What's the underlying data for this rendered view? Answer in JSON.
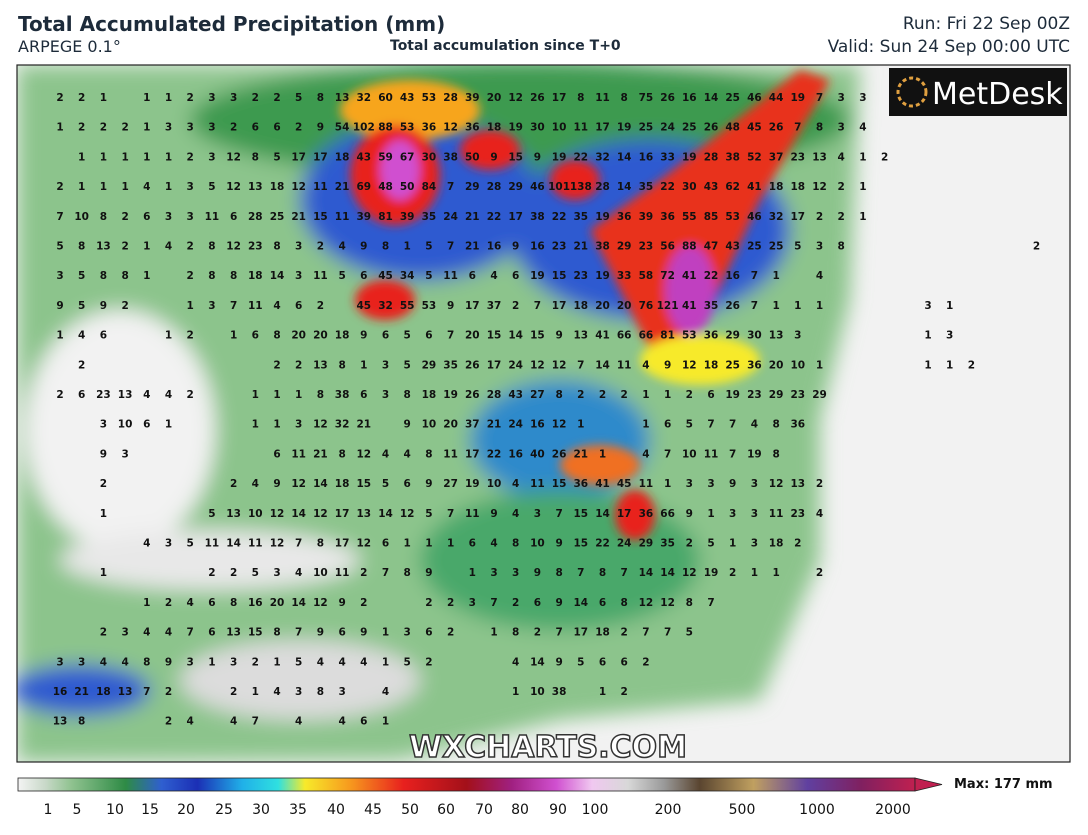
{
  "header": {
    "title": "Total Accumulated Precipitation (mm)",
    "model": "ARPEGE 0.1°",
    "subtitle": "Total accumulation since T+0",
    "run": "Run: Fri 22 Sep 00Z",
    "valid": "Valid: Sun 24 Sep 00:00 UTC"
  },
  "logo": "MetDesk",
  "watermark": "WXCHARTS.COM",
  "colorbar": {
    "ticks": [
      1,
      5,
      10,
      15,
      20,
      25,
      30,
      35,
      40,
      45,
      50,
      60,
      70,
      80,
      90,
      100,
      200,
      500,
      1000,
      2000
    ],
    "max": "Max: 177 mm"
  },
  "grid": {
    "rows": [
      [
        2,
        2,
        1,
        null,
        1,
        1,
        2,
        3,
        3,
        2,
        2,
        5,
        8,
        13,
        32,
        60,
        43,
        53,
        28,
        39,
        20,
        12,
        26,
        17,
        8,
        11,
        8,
        75,
        26,
        16,
        14,
        25,
        46,
        44,
        19,
        7,
        3,
        3
      ],
      [
        1,
        2,
        2,
        2,
        1,
        3,
        3,
        3,
        2,
        6,
        6,
        2,
        9,
        54,
        102,
        88,
        53,
        36,
        12,
        36,
        18,
        19,
        30,
        10,
        11,
        17,
        19,
        25,
        24,
        25,
        26,
        48,
        45,
        26,
        7,
        8,
        3,
        4
      ],
      [
        null,
        1,
        1,
        1,
        1,
        1,
        2,
        3,
        12,
        8,
        5,
        17,
        17,
        18,
        43,
        59,
        67,
        30,
        38,
        50,
        9,
        15,
        9,
        19,
        22,
        32,
        14,
        16,
        33,
        19,
        28,
        38,
        52,
        37,
        23,
        13,
        4,
        1,
        2
      ],
      [
        2,
        1,
        1,
        1,
        4,
        1,
        3,
        5,
        12,
        13,
        18,
        12,
        11,
        21,
        69,
        48,
        50,
        84,
        7,
        29,
        28,
        29,
        46,
        101,
        138,
        28,
        14,
        35,
        22,
        30,
        43,
        62,
        41,
        18,
        18,
        12,
        2,
        1
      ],
      [
        7,
        10,
        8,
        2,
        6,
        3,
        3,
        11,
        6,
        28,
        25,
        21,
        15,
        11,
        39,
        81,
        39,
        35,
        24,
        21,
        22,
        17,
        38,
        22,
        35,
        19,
        36,
        39,
        36,
        55,
        85,
        53,
        46,
        32,
        17,
        2,
        2,
        1
      ],
      [
        5,
        8,
        13,
        2,
        1,
        4,
        2,
        8,
        12,
        23,
        8,
        3,
        2,
        4,
        9,
        8,
        1,
        5,
        7,
        21,
        16,
        9,
        16,
        23,
        21,
        38,
        29,
        23,
        56,
        88,
        47,
        43,
        25,
        25,
        5,
        3,
        8,
        null,
        null,
        null,
        null,
        null,
        null,
        null,
        null,
        2
      ],
      [
        3,
        5,
        8,
        8,
        1,
        null,
        2,
        8,
        8,
        18,
        14,
        3,
        11,
        5,
        6,
        45,
        34,
        5,
        11,
        6,
        4,
        6,
        19,
        15,
        23,
        19,
        33,
        58,
        72,
        41,
        22,
        16,
        7,
        1,
        null,
        4
      ],
      [
        9,
        5,
        9,
        2,
        null,
        null,
        1,
        3,
        7,
        11,
        4,
        6,
        2,
        null,
        45,
        32,
        55,
        53,
        9,
        17,
        37,
        2,
        7,
        17,
        18,
        20,
        20,
        76,
        121,
        41,
        35,
        26,
        7,
        1,
        1,
        1,
        null,
        null,
        null,
        null,
        3,
        1
      ],
      [
        1,
        4,
        6,
        null,
        null,
        1,
        2,
        null,
        1,
        6,
        8,
        20,
        20,
        18,
        9,
        6,
        5,
        6,
        7,
        20,
        15,
        14,
        15,
        9,
        13,
        41,
        66,
        66,
        81,
        53,
        36,
        29,
        30,
        13,
        3,
        null,
        null,
        null,
        null,
        null,
        1,
        3
      ],
      [
        null,
        2,
        null,
        null,
        null,
        null,
        null,
        null,
        null,
        null,
        2,
        2,
        13,
        8,
        1,
        3,
        5,
        29,
        35,
        26,
        17,
        24,
        12,
        12,
        7,
        14,
        11,
        4,
        9,
        12,
        18,
        25,
        36,
        20,
        10,
        1,
        null,
        null,
        null,
        null,
        1,
        1,
        2
      ],
      [
        2,
        6,
        23,
        13,
        4,
        4,
        2,
        null,
        null,
        1,
        1,
        1,
        8,
        38,
        6,
        3,
        8,
        18,
        19,
        26,
        28,
        43,
        27,
        8,
        2,
        2,
        2,
        1,
        1,
        2,
        6,
        19,
        23,
        29,
        23,
        29
      ],
      [
        null,
        null,
        3,
        10,
        6,
        1,
        null,
        null,
        null,
        1,
        1,
        3,
        12,
        32,
        21,
        null,
        9,
        10,
        20,
        37,
        21,
        24,
        16,
        12,
        1,
        null,
        null,
        1,
        6,
        5,
        7,
        7,
        4,
        8,
        36
      ],
      [
        null,
        null,
        9,
        3,
        null,
        null,
        null,
        null,
        null,
        null,
        6,
        11,
        21,
        8,
        12,
        4,
        4,
        8,
        11,
        17,
        22,
        16,
        40,
        26,
        21,
        1,
        null,
        4,
        7,
        10,
        11,
        7,
        19,
        8
      ],
      [
        null,
        null,
        2,
        null,
        null,
        null,
        null,
        null,
        2,
        4,
        9,
        12,
        14,
        18,
        15,
        5,
        6,
        9,
        27,
        19,
        10,
        4,
        11,
        15,
        36,
        41,
        45,
        11,
        1,
        3,
        3,
        9,
        3,
        12,
        13,
        2
      ],
      [
        null,
        null,
        1,
        null,
        null,
        null,
        null,
        5,
        13,
        10,
        12,
        14,
        12,
        17,
        13,
        14,
        12,
        5,
        7,
        11,
        9,
        4,
        3,
        7,
        15,
        14,
        17,
        36,
        66,
        9,
        1,
        3,
        3,
        11,
        23,
        4
      ],
      [
        null,
        null,
        null,
        null,
        4,
        3,
        5,
        11,
        14,
        11,
        12,
        7,
        8,
        17,
        12,
        6,
        1,
        1,
        1,
        6,
        4,
        8,
        10,
        9,
        15,
        22,
        24,
        29,
        35,
        2,
        5,
        1,
        3,
        18,
        2
      ],
      [
        null,
        null,
        1,
        null,
        null,
        null,
        null,
        2,
        2,
        5,
        3,
        4,
        10,
        11,
        2,
        7,
        8,
        9,
        null,
        1,
        3,
        3,
        9,
        8,
        7,
        8,
        7,
        14,
        14,
        12,
        19,
        2,
        1,
        1,
        null,
        2
      ],
      [
        null,
        null,
        null,
        null,
        1,
        2,
        4,
        6,
        8,
        16,
        20,
        14,
        12,
        9,
        2,
        null,
        null,
        2,
        2,
        3,
        7,
        2,
        6,
        9,
        14,
        6,
        8,
        12,
        12,
        8,
        7
      ],
      [
        null,
        null,
        2,
        3,
        4,
        4,
        7,
        6,
        13,
        15,
        8,
        7,
        9,
        6,
        9,
        1,
        3,
        6,
        2,
        null,
        1,
        8,
        2,
        7,
        17,
        18,
        2,
        7,
        7,
        5
      ],
      [
        3,
        3,
        4,
        4,
        8,
        9,
        3,
        1,
        3,
        2,
        1,
        5,
        4,
        4,
        4,
        1,
        5,
        2,
        null,
        null,
        null,
        4,
        14,
        9,
        5,
        6,
        6,
        2
      ],
      [
        16,
        21,
        18,
        13,
        7,
        2,
        null,
        null,
        2,
        1,
        4,
        3,
        8,
        3,
        null,
        4,
        null,
        null,
        null,
        null,
        null,
        1,
        10,
        38,
        null,
        1,
        2
      ],
      [
        13,
        8,
        null,
        null,
        null,
        2,
        4,
        null,
        4,
        7,
        null,
        4,
        null,
        4,
        6,
        1
      ]
    ]
  }
}
